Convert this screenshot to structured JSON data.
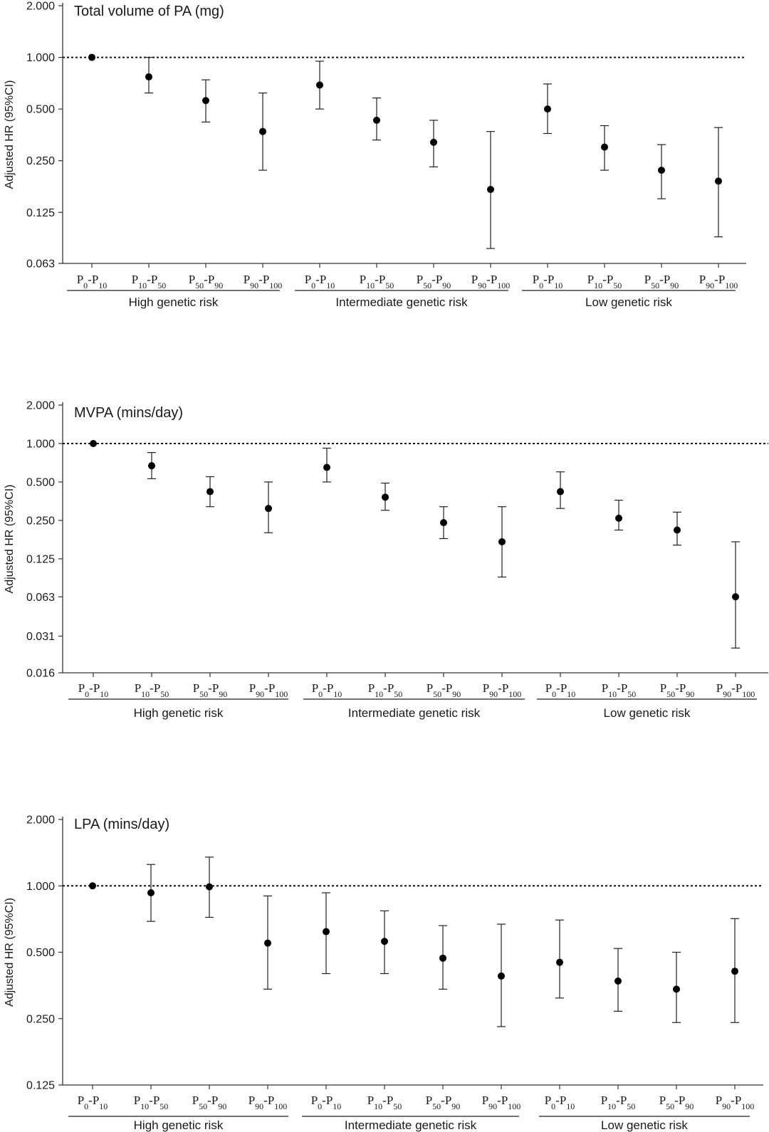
{
  "chart_data": [
    {
      "type": "scatter",
      "subtype": "forest-plot",
      "title": "Total volume of PA (mg)",
      "ylabel": "Adjusted HR (95%CI)",
      "yscale": "log2",
      "yticks": [
        "0.063",
        "0.125",
        "0.250",
        "0.500",
        "1.000",
        "2.000"
      ],
      "reference_line": 1.0,
      "groups": [
        "High genetic risk",
        "Intermediate genetic risk",
        "Low genetic risk"
      ],
      "categories": [
        {
          "p": "0",
          "q": "10"
        },
        {
          "p": "10",
          "q": "50"
        },
        {
          "p": "50",
          "q": "90"
        },
        {
          "p": "90",
          "q": "100"
        }
      ],
      "points": [
        [
          {
            "hr": 1.0,
            "lo": 1.0,
            "hi": 1.0
          },
          {
            "hr": 0.77,
            "lo": 0.62,
            "hi": 1.0
          },
          {
            "hr": 0.56,
            "lo": 0.42,
            "hi": 0.74
          },
          {
            "hr": 0.37,
            "lo": 0.22,
            "hi": 0.62
          }
        ],
        [
          {
            "hr": 0.69,
            "lo": 0.5,
            "hi": 0.95
          },
          {
            "hr": 0.43,
            "lo": 0.33,
            "hi": 0.58
          },
          {
            "hr": 0.32,
            "lo": 0.23,
            "hi": 0.43
          },
          {
            "hr": 0.17,
            "lo": 0.077,
            "hi": 0.37
          }
        ],
        [
          {
            "hr": 0.5,
            "lo": 0.36,
            "hi": 0.7
          },
          {
            "hr": 0.3,
            "lo": 0.22,
            "hi": 0.4
          },
          {
            "hr": 0.22,
            "lo": 0.15,
            "hi": 0.31
          },
          {
            "hr": 0.19,
            "lo": 0.09,
            "hi": 0.39
          }
        ]
      ]
    },
    {
      "type": "scatter",
      "subtype": "forest-plot",
      "title": "MVPA (mins/day)",
      "ylabel": "Adjusted HR (95%CI)",
      "yscale": "log2",
      "yticks": [
        "0.016",
        "0.031",
        "0.063",
        "0.125",
        "0.250",
        "0.500",
        "1.000",
        "2.000"
      ],
      "reference_line": 1.0,
      "groups": [
        "High genetic risk",
        "Intermediate genetic risk",
        "Low genetic risk"
      ],
      "categories": [
        {
          "p": "0",
          "q": "10"
        },
        {
          "p": "10",
          "q": "50"
        },
        {
          "p": "50",
          "q": "90"
        },
        {
          "p": "90",
          "q": "100"
        }
      ],
      "points": [
        [
          {
            "hr": 1.0,
            "lo": 1.0,
            "hi": 1.0
          },
          {
            "hr": 0.67,
            "lo": 0.53,
            "hi": 0.85
          },
          {
            "hr": 0.42,
            "lo": 0.32,
            "hi": 0.55
          },
          {
            "hr": 0.31,
            "lo": 0.2,
            "hi": 0.5
          }
        ],
        [
          {
            "hr": 0.65,
            "lo": 0.5,
            "hi": 0.92
          },
          {
            "hr": 0.38,
            "lo": 0.3,
            "hi": 0.49
          },
          {
            "hr": 0.24,
            "lo": 0.18,
            "hi": 0.32
          },
          {
            "hr": 0.17,
            "lo": 0.09,
            "hi": 0.32
          }
        ],
        [
          {
            "hr": 0.42,
            "lo": 0.31,
            "hi": 0.6
          },
          {
            "hr": 0.26,
            "lo": 0.21,
            "hi": 0.36
          },
          {
            "hr": 0.21,
            "lo": 0.16,
            "hi": 0.29
          },
          {
            "hr": 0.063,
            "lo": 0.025,
            "hi": 0.17
          }
        ]
      ]
    },
    {
      "type": "scatter",
      "subtype": "forest-plot",
      "title": "LPA (mins/day)",
      "ylabel": "Adjusted HR (95%CI)",
      "yscale": "log2",
      "yticks": [
        "0.125",
        "0.250",
        "0.500",
        "1.000",
        "2.000"
      ],
      "reference_line": 1.0,
      "groups": [
        "High genetic risk",
        "Intermediate genetic risk",
        "Low genetic risk"
      ],
      "categories": [
        {
          "p": "0",
          "q": "10"
        },
        {
          "p": "10",
          "q": "50"
        },
        {
          "p": "50",
          "q": "90"
        },
        {
          "p": "90",
          "q": "100"
        }
      ],
      "points": [
        [
          {
            "hr": 1.0,
            "lo": 1.0,
            "hi": 1.0
          },
          {
            "hr": 0.93,
            "lo": 0.69,
            "hi": 1.25
          },
          {
            "hr": 0.99,
            "lo": 0.72,
            "hi": 1.35
          },
          {
            "hr": 0.55,
            "lo": 0.34,
            "hi": 0.9
          }
        ],
        [
          {
            "hr": 0.62,
            "lo": 0.4,
            "hi": 0.93
          },
          {
            "hr": 0.56,
            "lo": 0.4,
            "hi": 0.77
          },
          {
            "hr": 0.47,
            "lo": 0.34,
            "hi": 0.66
          },
          {
            "hr": 0.39,
            "lo": 0.23,
            "hi": 0.67
          }
        ],
        [
          {
            "hr": 0.45,
            "lo": 0.31,
            "hi": 0.7
          },
          {
            "hr": 0.37,
            "lo": 0.27,
            "hi": 0.52
          },
          {
            "hr": 0.34,
            "lo": 0.24,
            "hi": 0.5
          },
          {
            "hr": 0.41,
            "lo": 0.24,
            "hi": 0.71
          }
        ]
      ]
    }
  ]
}
